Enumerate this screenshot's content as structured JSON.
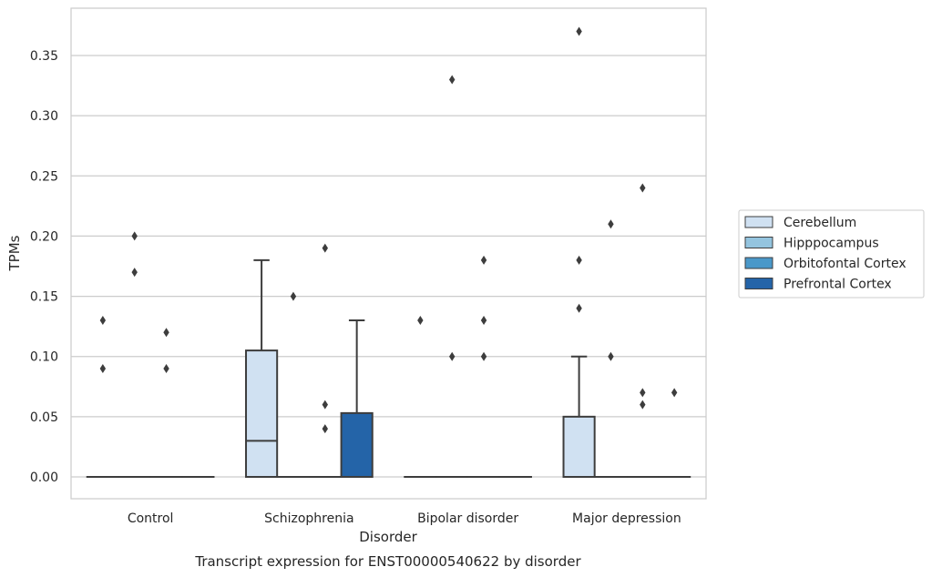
{
  "chart_data": {
    "type": "box",
    "title": "Transcript expression for ENST00000540622 by disorder",
    "xlabel": "Disorder",
    "ylabel": "TPMs",
    "categories": [
      "Control",
      "Schizophrenia",
      "Bipolar disorder",
      "Major depression"
    ],
    "ylim": [
      -0.018,
      0.39
    ],
    "yticks": [
      0.0,
      0.05,
      0.1,
      0.15,
      0.2,
      0.25,
      0.3,
      0.35
    ],
    "ytick_labels": [
      "0.00",
      "0.05",
      "0.10",
      "0.15",
      "0.20",
      "0.25",
      "0.30",
      "0.35"
    ],
    "grid": true,
    "legend_position": "right",
    "series": [
      {
        "name": "Cerebellum",
        "color": "#d0e1f2",
        "boxes": [
          {
            "min": 0,
            "q1": 0,
            "median": 0,
            "q3": 0,
            "max": 0,
            "outliers": [
              0.13,
              0.09
            ]
          },
          {
            "min": 0,
            "q1": 0,
            "median": 0.03,
            "q3": 0.105,
            "max": 0.18,
            "outliers": []
          },
          {
            "min": 0,
            "q1": 0,
            "median": 0,
            "q3": 0,
            "max": 0,
            "outliers": [
              0.13
            ]
          },
          {
            "min": 0,
            "q1": 0,
            "median": 0,
            "q3": 0.05,
            "max": 0.1,
            "outliers": [
              0.37,
              0.18,
              0.14
            ]
          }
        ]
      },
      {
        "name": "Hipppocampus",
        "color": "#94c4df",
        "boxes": [
          {
            "min": 0,
            "q1": 0,
            "median": 0,
            "q3": 0,
            "max": 0,
            "outliers": [
              0.2,
              0.17
            ]
          },
          {
            "min": 0,
            "q1": 0,
            "median": 0,
            "q3": 0,
            "max": 0,
            "outliers": [
              0.15
            ]
          },
          {
            "min": 0,
            "q1": 0,
            "median": 0,
            "q3": 0,
            "max": 0,
            "outliers": [
              0.33,
              0.1
            ]
          },
          {
            "min": 0,
            "q1": 0,
            "median": 0,
            "q3": 0,
            "max": 0,
            "outliers": [
              0.21,
              0.1
            ]
          }
        ]
      },
      {
        "name": "Orbitofontal Cortex",
        "color": "#4a98c9",
        "boxes": [
          {
            "min": 0,
            "q1": 0,
            "median": 0,
            "q3": 0,
            "max": 0,
            "outliers": [
              0.12,
              0.09
            ]
          },
          {
            "min": 0,
            "q1": 0,
            "median": 0,
            "q3": 0,
            "max": 0,
            "outliers": [
              0.19,
              0.06,
              0.04
            ]
          },
          {
            "min": 0,
            "q1": 0,
            "median": 0,
            "q3": 0,
            "max": 0,
            "outliers": [
              0.18,
              0.13,
              0.1
            ]
          },
          {
            "min": 0,
            "q1": 0,
            "median": 0,
            "q3": 0,
            "max": 0,
            "outliers": [
              0.24,
              0.07,
              0.06
            ]
          }
        ]
      },
      {
        "name": "Prefrontal Cortex",
        "color": "#2464a8",
        "boxes": [
          {
            "min": 0,
            "q1": 0,
            "median": 0,
            "q3": 0,
            "max": 0,
            "outliers": []
          },
          {
            "min": 0,
            "q1": 0,
            "median": 0,
            "q3": 0.053,
            "max": 0.13,
            "outliers": []
          },
          {
            "min": 0,
            "q1": 0,
            "median": 0,
            "q3": 0,
            "max": 0,
            "outliers": []
          },
          {
            "min": 0,
            "q1": 0,
            "median": 0,
            "q3": 0,
            "max": 0,
            "outliers": [
              0.07
            ]
          }
        ]
      }
    ]
  }
}
